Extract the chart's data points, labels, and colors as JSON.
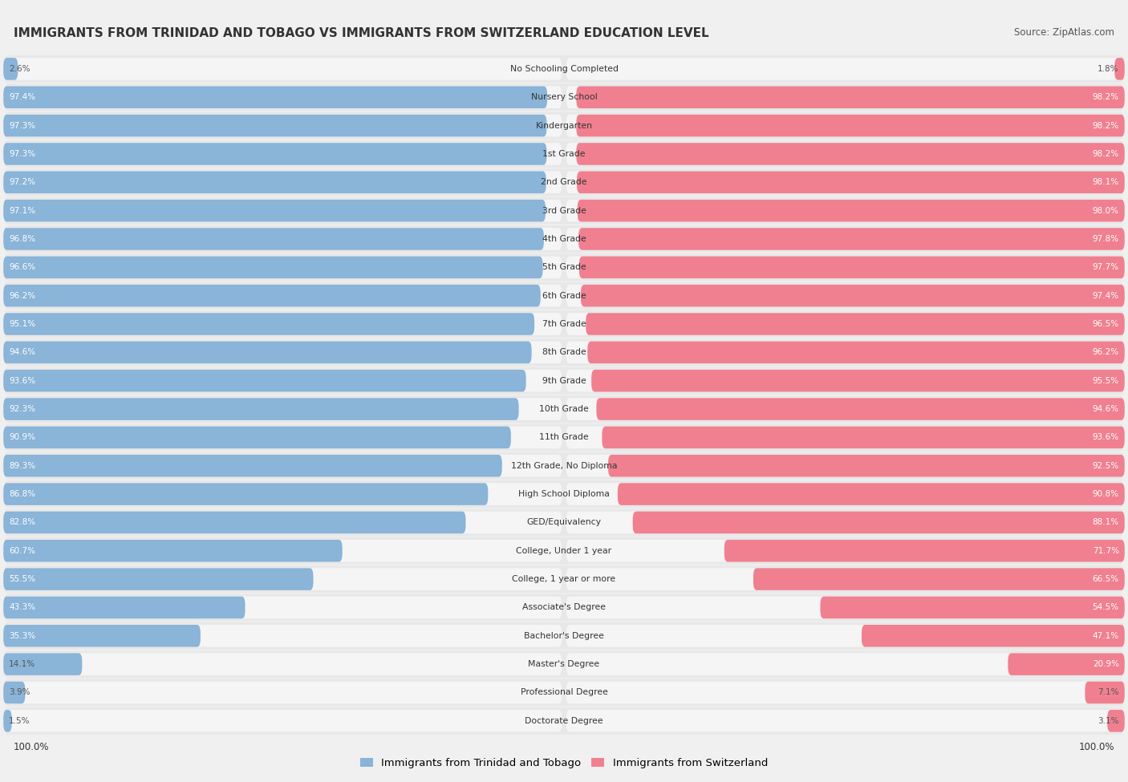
{
  "title": "IMMIGRANTS FROM TRINIDAD AND TOBAGO VS IMMIGRANTS FROM SWITZERLAND EDUCATION LEVEL",
  "source": "Source: ZipAtlas.com",
  "categories": [
    "No Schooling Completed",
    "Nursery School",
    "Kindergarten",
    "1st Grade",
    "2nd Grade",
    "3rd Grade",
    "4th Grade",
    "5th Grade",
    "6th Grade",
    "7th Grade",
    "8th Grade",
    "9th Grade",
    "10th Grade",
    "11th Grade",
    "12th Grade, No Diploma",
    "High School Diploma",
    "GED/Equivalency",
    "College, Under 1 year",
    "College, 1 year or more",
    "Associate's Degree",
    "Bachelor's Degree",
    "Master's Degree",
    "Professional Degree",
    "Doctorate Degree"
  ],
  "trinidad": [
    2.6,
    97.4,
    97.3,
    97.3,
    97.2,
    97.1,
    96.8,
    96.6,
    96.2,
    95.1,
    94.6,
    93.6,
    92.3,
    90.9,
    89.3,
    86.8,
    82.8,
    60.7,
    55.5,
    43.3,
    35.3,
    14.1,
    3.9,
    1.5
  ],
  "switzerland": [
    1.8,
    98.2,
    98.2,
    98.2,
    98.1,
    98.0,
    97.8,
    97.7,
    97.4,
    96.5,
    96.2,
    95.5,
    94.6,
    93.6,
    92.5,
    90.8,
    88.1,
    71.7,
    66.5,
    54.5,
    47.1,
    20.9,
    7.1,
    3.1
  ],
  "trinidad_color": "#8ab4d8",
  "switzerland_color": "#f08090",
  "row_bg_color": "#e8e8e8",
  "bar_bg_color": "#f5f5f5",
  "page_bg_color": "#f0f0f0",
  "legend_trinidad": "Immigrants from Trinidad and Tobago",
  "legend_switzerland": "Immigrants from Switzerland",
  "axis_label_left": "100.0%",
  "axis_label_right": "100.0%"
}
